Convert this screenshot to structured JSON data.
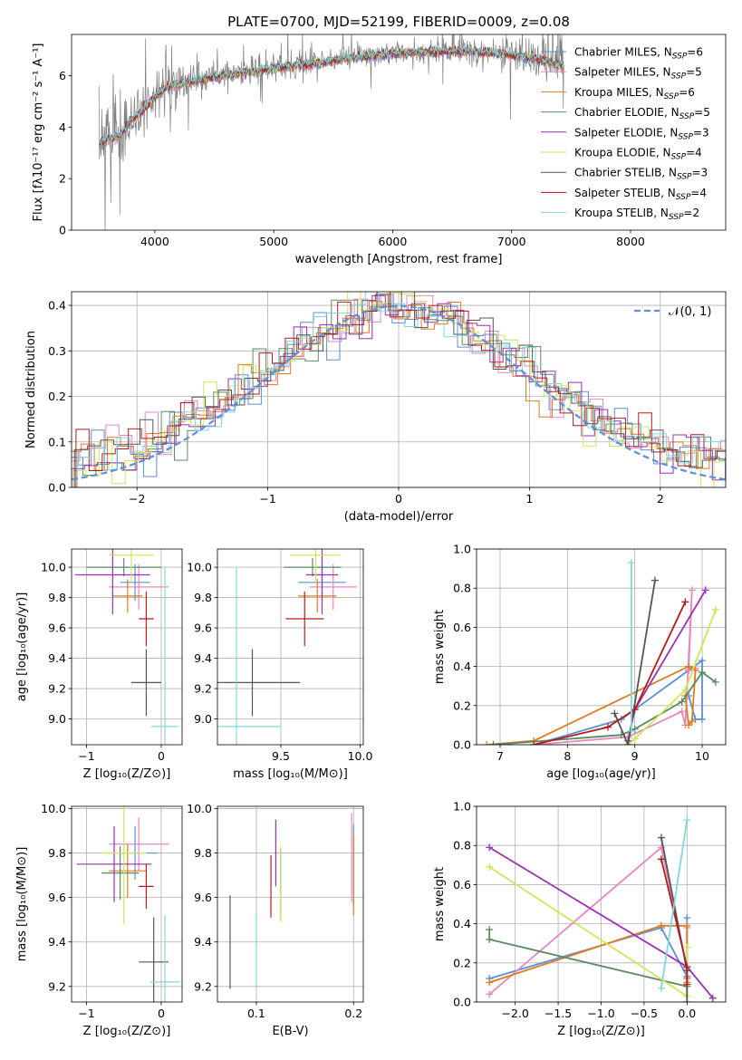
{
  "figure_title": "PLATE=0700, MJD=52199, FIBERID=0009, z=0.08",
  "palette": {
    "Chabrier MILES": "#5b8fd6",
    "Salpeter MILES": "#e887bf",
    "Kroupa MILES": "#e07b22",
    "Chabrier ELODIE": "#5a8a63",
    "Salpeter ELODIE": "#9b2fb5",
    "Kroupa ELODIE": "#cfe65a",
    "Chabrier STELIB": "#555555",
    "Salpeter STELIB": "#b21c1c",
    "Kroupa STELIB": "#80d8dc",
    "data": "#7f7f7f",
    "normal": "#5b8fd6"
  },
  "chart_data": [
    {
      "id": "spectrum",
      "type": "line",
      "title": "PLATE=0700, MJD=52199, FIBERID=0009, z=0.08",
      "xlabel": "wavelength [Angstrom, rest frame]",
      "ylabel": "Flux [fλ10⁻¹⁷ erg cm⁻² s⁻¹ A⁻¹]",
      "xlim": [
        3300,
        8800
      ],
      "ylim": [
        0,
        7.6
      ],
      "xticks": [
        4000,
        5000,
        6000,
        7000,
        8000
      ],
      "yticks": [
        0,
        2,
        4,
        6
      ],
      "legend_position": "top-right",
      "legend": [
        {
          "model": "Chabrier MILES",
          "prefix": "Chabrier MILES, N",
          "sub": "SSP",
          "suffix": "=6"
        },
        {
          "model": "Salpeter MILES",
          "prefix": "Salpeter MILES, N",
          "sub": "SSP",
          "suffix": "=5"
        },
        {
          "model": "Kroupa MILES",
          "prefix": "Kroupa MILES, N",
          "sub": "SSP",
          "suffix": "=6"
        },
        {
          "model": "Chabrier ELODIE",
          "prefix": "Chabrier ELODIE, N",
          "sub": "SSP",
          "suffix": "=5"
        },
        {
          "model": "Salpeter ELODIE",
          "prefix": "Salpeter ELODIE, N",
          "sub": "SSP",
          "suffix": "=3"
        },
        {
          "model": "Kroupa ELODIE",
          "prefix": "Kroupa ELODIE, N",
          "sub": "SSP",
          "suffix": "=4"
        },
        {
          "model": "Chabrier STELIB",
          "prefix": "Chabrier STELIB, N",
          "sub": "SSP",
          "suffix": "=3"
        },
        {
          "model": "Salpeter STELIB",
          "prefix": "Salpeter STELIB, N",
          "sub": "SSP",
          "suffix": "=4"
        },
        {
          "model": "Kroupa STELIB",
          "prefix": "Kroupa STELIB, N",
          "sub": "SSP",
          "suffix": "=2"
        }
      ],
      "data_range": [
        3530,
        7440
      ],
      "continuum": [
        [
          3530,
          3.4
        ],
        [
          3600,
          3.6
        ],
        [
          3700,
          3.7
        ],
        [
          3800,
          4.3
        ],
        [
          3900,
          4.7
        ],
        [
          4000,
          5.2
        ],
        [
          4100,
          5.6
        ],
        [
          4300,
          5.8
        ],
        [
          4500,
          6.0
        ],
        [
          4800,
          6.2
        ],
        [
          5000,
          6.35
        ],
        [
          5300,
          6.5
        ],
        [
          5600,
          6.7
        ],
        [
          5900,
          6.85
        ],
        [
          6200,
          6.95
        ],
        [
          6600,
          7.0
        ],
        [
          6900,
          6.9
        ],
        [
          7100,
          6.8
        ],
        [
          7300,
          6.6
        ],
        [
          7440,
          6.4
        ]
      ]
    },
    {
      "id": "residuals",
      "type": "histogram",
      "xlabel": "(data-model)/error",
      "ylabel": "Normed distribution",
      "xlim": [
        -2.5,
        2.5
      ],
      "ylim": [
        0,
        0.43
      ],
      "xticks": [
        -2,
        -1,
        0,
        1,
        2
      ],
      "yticks": [
        0.0,
        0.1,
        0.2,
        0.3,
        0.4
      ],
      "grid": true,
      "legend_position": "top-right",
      "reference": {
        "label": "𝒩(0, 1)",
        "mean": 0,
        "sigma": 1
      }
    },
    {
      "id": "age_vs_Z",
      "type": "errorbar",
      "xlabel": "Z [log₁₀(Z/Z⊙)]",
      "ylabel": "age  [log₁₀(age/yr)]",
      "xlim": [
        -1.2,
        0.28
      ],
      "ylim": [
        8.83,
        10.12
      ],
      "xticks": [
        -1,
        0
      ],
      "yticks": [
        9.0,
        9.2,
        9.4,
        9.6,
        9.8,
        10.0
      ],
      "grid": true,
      "points": [
        {
          "model": "Chabrier MILES",
          "x": -0.35,
          "xerr": 0.2,
          "y": 9.9,
          "yerr": 0.12
        },
        {
          "model": "Salpeter MILES",
          "x": -0.3,
          "xerr": 0.4,
          "y": 9.87,
          "yerr": 0.15
        },
        {
          "model": "Kroupa MILES",
          "x": -0.45,
          "xerr": 0.2,
          "y": 9.81,
          "yerr": 0.11
        },
        {
          "model": "Chabrier ELODIE",
          "x": -0.5,
          "xerr": 0.5,
          "y": 10.0,
          "yerr": 0.06
        },
        {
          "model": "Salpeter ELODIE",
          "x": -0.65,
          "xerr": 0.5,
          "y": 9.95,
          "yerr": 0.26
        },
        {
          "model": "Kroupa ELODIE",
          "x": -0.4,
          "xerr": 0.3,
          "y": 10.08,
          "yerr": 0.18
        },
        {
          "model": "Chabrier STELIB",
          "x": -0.2,
          "xerr": 0.2,
          "y": 9.24,
          "yerr": 0.22
        },
        {
          "model": "Salpeter STELIB",
          "x": -0.2,
          "xerr": 0.1,
          "y": 9.66,
          "yerr": 0.18
        },
        {
          "model": "Kroupa STELIB",
          "x": 0.05,
          "xerr": 0.18,
          "y": 8.95,
          "yerr": 1.05
        }
      ]
    },
    {
      "id": "age_vs_mass",
      "type": "errorbar",
      "xlabel": "mass [log₁₀(M/M⊙)]",
      "ylabel": "",
      "xlim": [
        9.1,
        10.02
      ],
      "ylim": [
        8.83,
        10.12
      ],
      "xticks": [
        9.5,
        10.0
      ],
      "yticks": [
        9.0,
        9.2,
        9.4,
        9.6,
        9.8,
        10.0
      ],
      "grid": true,
      "points": [
        {
          "model": "Chabrier MILES",
          "x": 9.76,
          "xerr": 0.15,
          "y": 9.9,
          "yerr": 0.12
        },
        {
          "model": "Salpeter MILES",
          "x": 9.83,
          "xerr": 0.15,
          "y": 9.87,
          "yerr": 0.15
        },
        {
          "model": "Kroupa MILES",
          "x": 9.73,
          "xerr": 0.12,
          "y": 9.81,
          "yerr": 0.11
        },
        {
          "model": "Chabrier ELODIE",
          "x": 9.7,
          "xerr": 0.18,
          "y": 10.0,
          "yerr": 0.06
        },
        {
          "model": "Salpeter ELODIE",
          "x": 9.76,
          "xerr": 0.1,
          "y": 9.95,
          "yerr": 0.26
        },
        {
          "model": "Kroupa ELODIE",
          "x": 9.72,
          "xerr": 0.16,
          "y": 10.08,
          "yerr": 0.18
        },
        {
          "model": "Chabrier STELIB",
          "x": 9.32,
          "xerr": 0.3,
          "y": 9.24,
          "yerr": 0.22
        },
        {
          "model": "Salpeter STELIB",
          "x": 9.65,
          "xerr": 0.12,
          "y": 9.66,
          "yerr": 0.18
        },
        {
          "model": "Kroupa STELIB",
          "x": 9.22,
          "xerr": 0.28,
          "y": 8.95,
          "yerr": 1.05
        }
      ]
    },
    {
      "id": "weight_vs_age",
      "type": "line",
      "xlabel": "age  [log₁₀(age/yr)]",
      "ylabel": "mass weight",
      "xlim": [
        6.65,
        10.35
      ],
      "ylim": [
        0,
        1.0
      ],
      "xticks": [
        7,
        8,
        9,
        10
      ],
      "yticks": [
        0.0,
        0.2,
        0.4,
        0.6,
        0.8,
        1.0
      ],
      "grid": true,
      "series": [
        {
          "model": "Chabrier MILES",
          "points": [
            [
              7.5,
              0.0
            ],
            [
              8.8,
              0.13
            ],
            [
              9.8,
              0.38
            ],
            [
              10.0,
              0.43
            ],
            [
              10.0,
              0.13
            ],
            [
              9.9,
              0.13
            ],
            [
              9.8,
              0.25
            ]
          ]
        },
        {
          "model": "Salpeter MILES",
          "points": [
            [
              7.5,
              0.0
            ],
            [
              8.9,
              0.04
            ],
            [
              9.7,
              0.17
            ],
            [
              9.75,
              0.1
            ],
            [
              9.85,
              0.79
            ],
            [
              9.8,
              0.38
            ],
            [
              9.9,
              0.39
            ]
          ]
        },
        {
          "model": "Kroupa MILES",
          "points": [
            [
              6.8,
              0.0
            ],
            [
              7.5,
              0.02
            ],
            [
              9.8,
              0.4
            ],
            [
              9.9,
              0.38
            ],
            [
              9.85,
              0.12
            ],
            [
              9.8,
              0.1
            ],
            [
              9.75,
              0.25
            ]
          ]
        },
        {
          "model": "Chabrier ELODIE",
          "points": [
            [
              6.9,
              0.0
            ],
            [
              8.8,
              0.05
            ],
            [
              9.0,
              0.08
            ],
            [
              9.7,
              0.22
            ],
            [
              10.0,
              0.37
            ],
            [
              10.2,
              0.32
            ]
          ]
        },
        {
          "model": "Salpeter ELODIE",
          "points": [
            [
              8.9,
              0.02
            ],
            [
              9.0,
              0.18
            ],
            [
              10.05,
              0.79
            ]
          ]
        },
        {
          "model": "Kroupa ELODIE",
          "points": [
            [
              8.9,
              0.0
            ],
            [
              9.0,
              0.03
            ],
            [
              9.75,
              0.28
            ],
            [
              10.2,
              0.69
            ]
          ]
        },
        {
          "model": "Chabrier STELIB",
          "points": [
            [
              8.7,
              0.16
            ],
            [
              8.9,
              0.0
            ],
            [
              9.3,
              0.84
            ]
          ]
        },
        {
          "model": "Salpeter STELIB",
          "points": [
            [
              7.5,
              0.0
            ],
            [
              8.6,
              0.09
            ],
            [
              9.0,
              0.18
            ],
            [
              9.75,
              0.73
            ]
          ]
        },
        {
          "model": "Kroupa STELIB",
          "points": [
            [
              8.95,
              0.93
            ],
            [
              8.95,
              0.07
            ]
          ]
        }
      ]
    },
    {
      "id": "mass_vs_Z",
      "type": "errorbar",
      "xlabel": "Z [log₁₀(Z/Z⊙)]",
      "ylabel": "mass [log₁₀(M/M⊙)]",
      "xlim": [
        -1.2,
        0.28
      ],
      "ylim": [
        9.13,
        10.01
      ],
      "xticks": [
        -1,
        0
      ],
      "yticks": [
        9.2,
        9.4,
        9.6,
        9.8,
        10.0
      ],
      "grid": true,
      "points": [
        {
          "model": "Chabrier MILES",
          "x": -0.35,
          "xerr": 0.3,
          "y": 9.8,
          "yerr": 0.12
        },
        {
          "model": "Salpeter MILES",
          "x": -0.3,
          "xerr": 0.4,
          "y": 9.84,
          "yerr": 0.12
        },
        {
          "model": "Kroupa MILES",
          "x": -0.45,
          "xerr": 0.25,
          "y": 9.72,
          "yerr": 0.12
        },
        {
          "model": "Chabrier ELODIE",
          "x": -0.55,
          "xerr": 0.25,
          "y": 9.71,
          "yerr": 0.12
        },
        {
          "model": "Salpeter ELODIE",
          "x": -0.63,
          "xerr": 0.5,
          "y": 9.75,
          "yerr": 0.17
        },
        {
          "model": "Kroupa ELODIE",
          "x": -0.5,
          "xerr": 0.3,
          "y": 9.8,
          "yerr": 0.32
        },
        {
          "model": "Chabrier STELIB",
          "x": -0.1,
          "xerr": 0.2,
          "y": 9.31,
          "yerr": 0.2
        },
        {
          "model": "Salpeter STELIB",
          "x": -0.2,
          "xerr": 0.1,
          "y": 9.65,
          "yerr": 0.1
        },
        {
          "model": "Kroupa STELIB",
          "x": 0.05,
          "xerr": 0.2,
          "y": 9.22,
          "yerr": 0.3
        }
      ]
    },
    {
      "id": "mass_vs_ebv",
      "type": "errorbar",
      "xlabel": "E(B-V)",
      "ylabel": "",
      "xlim": [
        0.06,
        0.21
      ],
      "ylim": [
        9.13,
        10.01
      ],
      "xticks": [
        0.1,
        0.2
      ],
      "yticks": [
        9.2,
        9.4,
        9.6,
        9.8,
        10.0
      ],
      "grid": true,
      "points": [
        {
          "model": "Chabrier MILES",
          "x": 0.2,
          "xerr": 0,
          "y": 9.75,
          "yerr": 0.18
        },
        {
          "model": "Salpeter MILES",
          "x": 0.198,
          "xerr": 0,
          "y": 9.78,
          "yerr": 0.2
        },
        {
          "model": "Kroupa MILES",
          "x": 0.2,
          "xerr": 0,
          "y": 9.7,
          "yerr": 0.18
        },
        {
          "model": "Chabrier ELODIE",
          "x": 0.125,
          "xerr": 0,
          "y": 9.66,
          "yerr": 0.16
        },
        {
          "model": "Salpeter ELODIE",
          "x": 0.12,
          "xerr": 0,
          "y": 9.8,
          "yerr": 0.15
        },
        {
          "model": "Kroupa ELODIE",
          "x": 0.125,
          "xerr": 0,
          "y": 9.66,
          "yerr": 0.17
        },
        {
          "model": "Chabrier STELIB",
          "x": 0.073,
          "xerr": 0,
          "y": 9.4,
          "yerr": 0.21
        },
        {
          "model": "Salpeter STELIB",
          "x": 0.115,
          "xerr": 0,
          "y": 9.65,
          "yerr": 0.14
        },
        {
          "model": "Kroupa STELIB",
          "x": 0.1,
          "xerr": 0,
          "y": 9.36,
          "yerr": 0.17
        }
      ]
    },
    {
      "id": "weight_vs_Z",
      "type": "line",
      "xlabel": "Z [log₁₀(Z/Z⊙)]",
      "ylabel": "mass weight",
      "xlim": [
        -2.45,
        0.45
      ],
      "ylim": [
        0,
        1.0
      ],
      "xticks": [
        -2.0,
        -1.5,
        -1.0,
        -0.5,
        0.0
      ],
      "yticks": [
        0.0,
        0.2,
        0.4,
        0.6,
        0.8,
        1.0
      ],
      "grid": true,
      "series": [
        {
          "model": "Chabrier MILES",
          "points": [
            [
              -2.3,
              0.12
            ],
            [
              -0.3,
              0.38
            ],
            [
              0.0,
              0.13
            ],
            [
              0.0,
              0.43
            ],
            [
              0.0,
              0.13
            ]
          ]
        },
        {
          "model": "Salpeter MILES",
          "points": [
            [
              -2.3,
              0.04
            ],
            [
              -0.3,
              0.79
            ],
            [
              0.0,
              0.17
            ],
            [
              0.0,
              0.38
            ],
            [
              0.0,
              0.1
            ]
          ]
        },
        {
          "model": "Kroupa MILES",
          "points": [
            [
              -2.3,
              0.1
            ],
            [
              -0.3,
              0.39
            ],
            [
              0.0,
              0.39
            ],
            [
              0.0,
              0.12
            ],
            [
              0.0,
              0.1
            ]
          ]
        },
        {
          "model": "Chabrier ELODIE",
          "points": [
            [
              -2.3,
              0.37
            ],
            [
              -2.3,
              0.32
            ],
            [
              0.0,
              0.08
            ]
          ]
        },
        {
          "model": "Salpeter ELODIE",
          "points": [
            [
              -2.3,
              0.79
            ],
            [
              0.0,
              0.18
            ],
            [
              0.3,
              0.02
            ]
          ]
        },
        {
          "model": "Kroupa ELODIE",
          "points": [
            [
              -2.3,
              0.69
            ],
            [
              0.0,
              0.03
            ],
            [
              0.0,
              0.28
            ]
          ]
        },
        {
          "model": "Chabrier STELIB",
          "points": [
            [
              -0.3,
              0.84
            ],
            [
              0.0,
              0.16
            ],
            [
              0.0,
              0.0
            ]
          ]
        },
        {
          "model": "Salpeter STELIB",
          "points": [
            [
              -0.3,
              0.73
            ],
            [
              0.0,
              0.18
            ],
            [
              0.0,
              0.09
            ]
          ]
        },
        {
          "model": "Kroupa STELIB",
          "points": [
            [
              0.0,
              0.93
            ],
            [
              -0.3,
              0.07
            ]
          ]
        }
      ]
    }
  ]
}
